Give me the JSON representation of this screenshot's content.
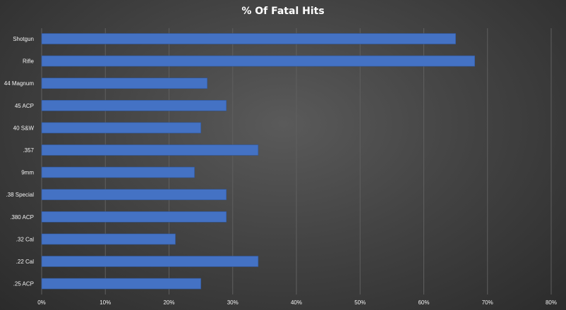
{
  "chart_data": {
    "type": "bar",
    "orientation": "horizontal",
    "title": "% Of Fatal Hits",
    "categories": [
      "Shotgun",
      "Rifle",
      "44 Magnum",
      "45 ACP",
      "40 S&W",
      ".357",
      "9mm",
      ".38 Special",
      ".380 ACP",
      ".32 Cal",
      ".22 Cal",
      ".25 ACP"
    ],
    "values": [
      65,
      68,
      26,
      29,
      25,
      34,
      24,
      29,
      29,
      21,
      34,
      25
    ],
    "xlim": [
      0,
      80
    ],
    "x_ticks": [
      "0%",
      "10%",
      "20%",
      "30%",
      "40%",
      "50%",
      "60%",
      "70%",
      "80%"
    ],
    "grid": "vertical",
    "legend": "none",
    "bar_color": "#4472C4",
    "gridline_color": "#5f5f5f"
  }
}
